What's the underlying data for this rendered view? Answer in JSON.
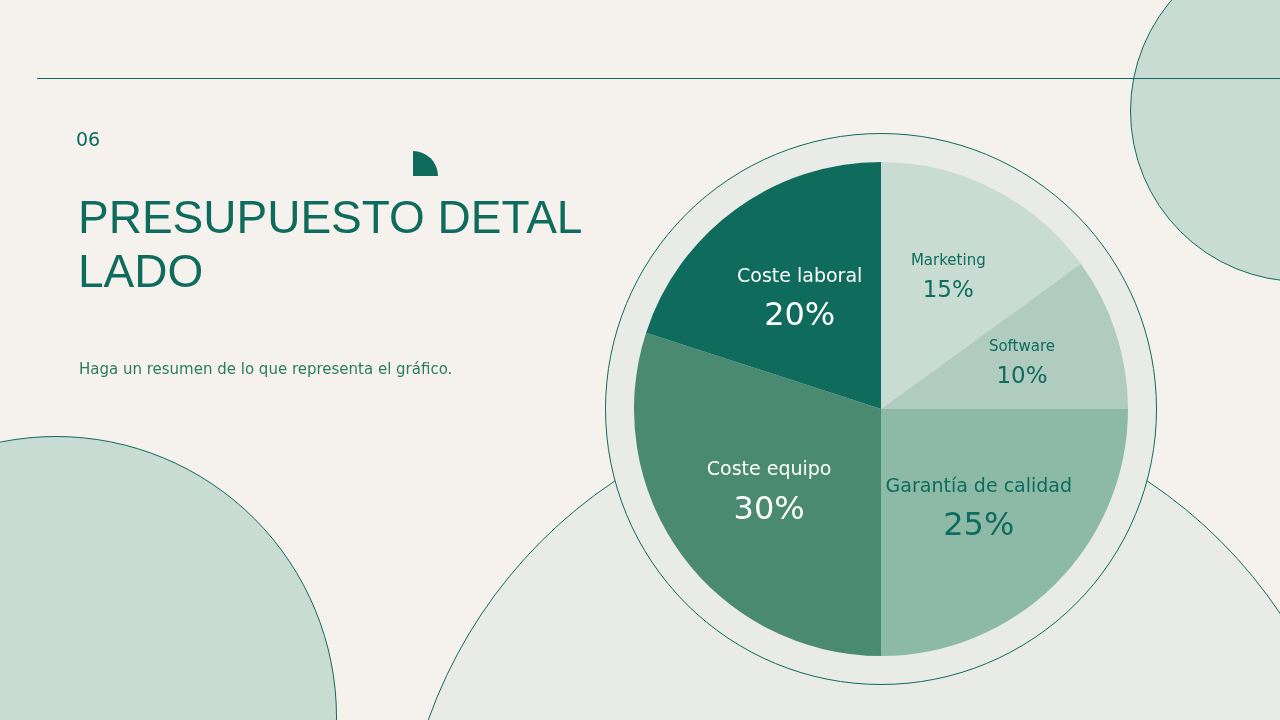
{
  "chart_data": {
    "type": "pie",
    "title": "PRESUPUESTO DETALLADO",
    "subtitle": "Haga un resumen de lo que representa el gráfico.",
    "annotations": [
      "06"
    ],
    "categories": [
      "Marketing",
      "Software",
      "Garantía de calidad",
      "Coste equipo",
      "Coste laboral"
    ],
    "values": [
      15,
      10,
      25,
      30,
      20
    ],
    "value_labels": [
      "15%",
      "10%",
      "25%",
      "30%",
      "20%"
    ],
    "colors": [
      "#c8dcd3",
      "#b0cbbf",
      "#8cbaa6",
      "#4a8a70",
      "#0f6b5c"
    ],
    "legend": false
  }
}
